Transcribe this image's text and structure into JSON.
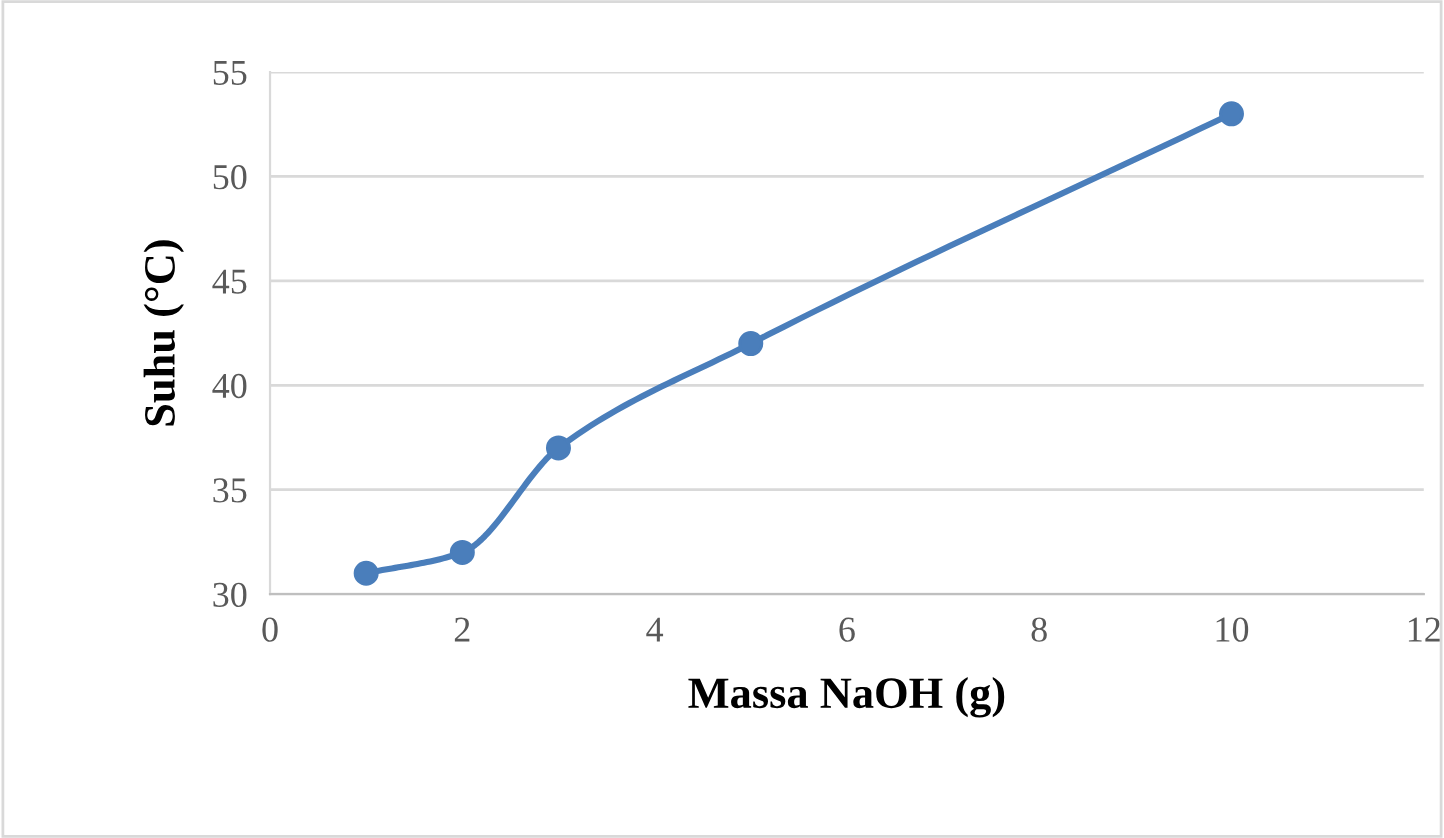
{
  "chart_data": {
    "type": "line",
    "xlabel": "Massa NaOH (g)",
    "ylabel": "Suhu (°C)",
    "x": [
      1,
      2,
      3,
      5,
      10
    ],
    "series": [
      {
        "color": "#4a7ebb",
        "values": [
          31,
          32,
          37,
          42,
          53
        ]
      }
    ],
    "xlim": [
      0,
      12
    ],
    "xticks": [
      0,
      2,
      4,
      6,
      8,
      10,
      12
    ],
    "ylim": [
      30,
      55
    ],
    "yticks": [
      30,
      35,
      40,
      45,
      50,
      55
    ],
    "grid": "y",
    "marker": "circle",
    "line_style": "solid",
    "legend": false
  }
}
